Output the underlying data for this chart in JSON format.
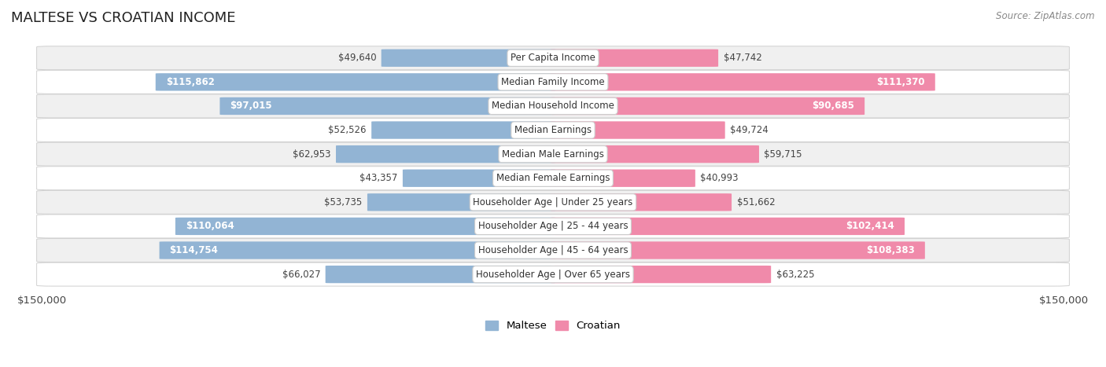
{
  "title": "MALTESE VS CROATIAN INCOME",
  "source": "Source: ZipAtlas.com",
  "categories": [
    "Per Capita Income",
    "Median Family Income",
    "Median Household Income",
    "Median Earnings",
    "Median Male Earnings",
    "Median Female Earnings",
    "Householder Age | Under 25 years",
    "Householder Age | 25 - 44 years",
    "Householder Age | 45 - 64 years",
    "Householder Age | Over 65 years"
  ],
  "maltese_values": [
    49640,
    115862,
    97015,
    52526,
    62953,
    43357,
    53735,
    110064,
    114754,
    66027
  ],
  "croatian_values": [
    47742,
    111370,
    90685,
    49724,
    59715,
    40993,
    51662,
    102414,
    108383,
    63225
  ],
  "maltese_labels": [
    "$49,640",
    "$115,862",
    "$97,015",
    "$52,526",
    "$62,953",
    "$43,357",
    "$53,735",
    "$110,064",
    "$114,754",
    "$66,027"
  ],
  "croatian_labels": [
    "$47,742",
    "$111,370",
    "$90,685",
    "$49,724",
    "$59,715",
    "$40,993",
    "$51,662",
    "$102,414",
    "$108,383",
    "$63,225"
  ],
  "max_value": 150000,
  "maltese_color": "#92b4d4",
  "croatian_color": "#f08aaa",
  "row_bg_even": "#f0f0f0",
  "row_bg_odd": "#ffffff",
  "bar_height": 0.72,
  "label_fontsize": 8.5,
  "category_fontsize": 8.5,
  "title_fontsize": 13,
  "threshold": 0.52
}
